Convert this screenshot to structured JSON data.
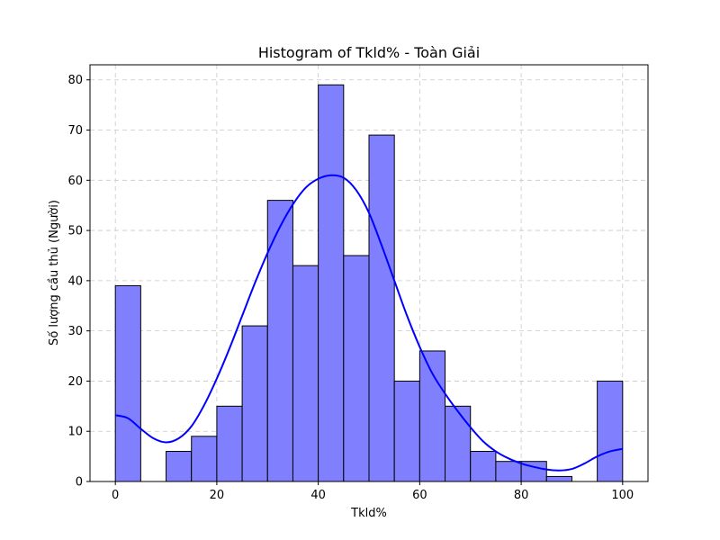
{
  "chart_data": {
    "type": "bar",
    "subtype": "histogram",
    "title": "Histogram of Tkld% - Toàn Giải",
    "xlabel": "Tkld%",
    "ylabel": "Số lượng cầu thủ (Người)",
    "bin_width": 5,
    "bins": [
      0,
      5,
      10,
      15,
      20,
      25,
      30,
      35,
      40,
      45,
      50,
      55,
      60,
      65,
      70,
      75,
      80,
      85,
      90,
      95
    ],
    "values": [
      39,
      0,
      6,
      9,
      15,
      31,
      56,
      43,
      79,
      45,
      69,
      20,
      26,
      15,
      6,
      4,
      4,
      1,
      0,
      20
    ],
    "xlim": [
      -5,
      105
    ],
    "ylim": [
      0,
      83
    ],
    "xticks": [
      0,
      20,
      40,
      60,
      80,
      100
    ],
    "yticks": [
      0,
      10,
      20,
      30,
      40,
      50,
      60,
      70,
      80
    ],
    "grid": true,
    "bar_color": "#8080ff",
    "bar_edge_color": "#000000",
    "kde": {
      "color": "#0000ff",
      "x": [
        0,
        2.5,
        5,
        7.5,
        10,
        12.5,
        15,
        17.5,
        20,
        22.5,
        25,
        27.5,
        30,
        32.5,
        35,
        37.5,
        40,
        42.5,
        45,
        47.5,
        50,
        52.5,
        55,
        57.5,
        60,
        62.5,
        65,
        67.5,
        70,
        72.5,
        75,
        77.5,
        80,
        82.5,
        85,
        87.5,
        90,
        92.5,
        95,
        97.5,
        100
      ],
      "y": [
        13.2,
        12.6,
        10.5,
        8.6,
        7.8,
        8.6,
        11.0,
        15.2,
        20.5,
        26.5,
        33.0,
        39.5,
        45.5,
        50.8,
        55.2,
        58.5,
        60.3,
        61.0,
        60.5,
        58.0,
        53.5,
        47.0,
        40.0,
        33.0,
        26.8,
        21.5,
        17.5,
        14.0,
        10.8,
        8.0,
        6.0,
        4.6,
        3.6,
        2.9,
        2.4,
        2.2,
        2.5,
        3.6,
        5.0,
        6.0,
        6.5
      ]
    }
  }
}
